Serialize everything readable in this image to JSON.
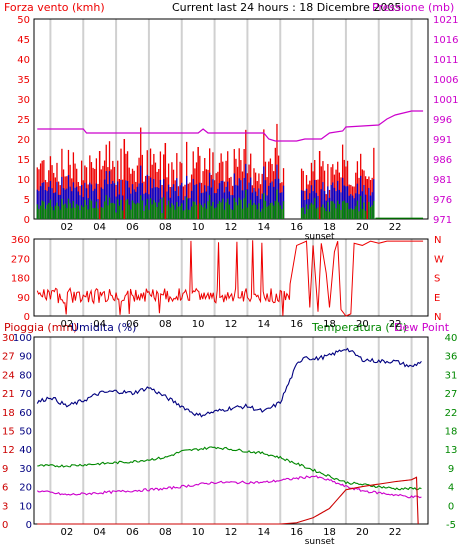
{
  "colors": {
    "red": "#ee0000",
    "blue": "#0000cc",
    "green": "#008800",
    "magenta": "#cc00cc",
    "dark_blue": "#000080",
    "dark_red": "#cc0000",
    "grid": "#d0d0d0",
    "frame": "#000000"
  },
  "chart_data": [
    {
      "type": "bar",
      "title": "Current last 24 hours : 18 Dicembre 2005",
      "left_label": "Forza vento (kmh)",
      "right_label": "Pressione (mb)",
      "left_ticks": [
        "50",
        "45",
        "40",
        "35",
        "30",
        "25",
        "20",
        "15",
        "10",
        "5",
        "0"
      ],
      "right_ticks": [
        "1021",
        "1016",
        "1011",
        "1006",
        "1001",
        "996",
        "991",
        "986",
        "981",
        "976",
        "971"
      ],
      "x_ticks": [
        "02",
        "04",
        "06",
        "08",
        "10",
        "12",
        "14",
        "16",
        "18",
        "20",
        "22"
      ],
      "annotation": "sunset",
      "ylim": [
        0,
        50
      ],
      "y2lim": [
        971,
        1021
      ],
      "x": {
        "start": 0.0,
        "end": 23.7
      },
      "series": [
        {
          "name": "gust",
          "color": "#ee0000",
          "kind": "bar"
        },
        {
          "name": "wind",
          "color": "#0000cc",
          "kind": "bar"
        },
        {
          "name": "min",
          "color": "#008800",
          "kind": "bar"
        },
        {
          "name": "pressure",
          "color": "#cc00cc",
          "kind": "line",
          "points": [
            [
              0.2,
              993.5
            ],
            [
              3.0,
              993.5
            ],
            [
              3.2,
              992.5
            ],
            [
              10.0,
              992.5
            ],
            [
              10.3,
              993.5
            ],
            [
              10.6,
              992.5
            ],
            [
              14.0,
              992.5
            ],
            [
              14.3,
              991.0
            ],
            [
              14.7,
              990.5
            ],
            [
              16.0,
              990.5
            ],
            [
              16.5,
              991.0
            ],
            [
              17.5,
              991.0
            ],
            [
              18.0,
              992.5
            ],
            [
              18.8,
              993.0
            ],
            [
              19.0,
              994.0
            ],
            [
              21.0,
              994.5
            ],
            [
              21.5,
              996.0
            ],
            [
              22.0,
              997.0
            ],
            [
              23.0,
              998.0
            ],
            [
              23.7,
              998.0
            ]
          ]
        }
      ]
    },
    {
      "type": "line",
      "right_labels": [
        "N",
        "W",
        "S",
        "E",
        "N"
      ],
      "left_ticks": [
        "360",
        "270",
        "180",
        "90",
        "0"
      ],
      "x_ticks": [
        "02",
        "04",
        "06",
        "08",
        "10",
        "12",
        "14",
        "16",
        "18",
        "20",
        "22"
      ],
      "ylim": [
        0,
        360
      ],
      "series": [
        {
          "name": "direction",
          "color": "#ee0000"
        }
      ]
    },
    {
      "type": "line",
      "left_label_1": "Pioggia (mm)",
      "left_label_2": "Umidita (%)",
      "right_label_1": "Temperatura (°C)",
      "right_label_2": "Dew Point",
      "rain_ticks": [
        "30",
        "27",
        "24",
        "21",
        "18",
        "15",
        "12",
        "9",
        "6",
        "3",
        "0"
      ],
      "hum_ticks": [
        "100",
        "90",
        "80",
        "70",
        "60",
        "50",
        "40",
        "30",
        "20",
        "10",
        "0"
      ],
      "temp_ticks": [
        "40",
        "36",
        "31",
        "27",
        "22",
        "18",
        "13",
        "9",
        "4",
        "0",
        "-5"
      ],
      "x_ticks": [
        "02",
        "04",
        "06",
        "08",
        "10",
        "12",
        "14",
        "16",
        "18",
        "20",
        "22"
      ],
      "annotation": "sunset",
      "humidity_lim": [
        0,
        100
      ],
      "temp_lim": [
        -5,
        40
      ],
      "series": [
        {
          "name": "humidity",
          "color": "#000080",
          "points": [
            [
              0.2,
              65
            ],
            [
              1.0,
              68
            ],
            [
              2.0,
              63
            ],
            [
              3.0,
              66
            ],
            [
              4.0,
              70
            ],
            [
              5.0,
              71
            ],
            [
              6.0,
              70
            ],
            [
              7.0,
              73
            ],
            [
              8.0,
              68
            ],
            [
              9.0,
              63
            ],
            [
              10.0,
              58
            ],
            [
              11.0,
              60
            ],
            [
              12.0,
              62
            ],
            [
              13.0,
              63
            ],
            [
              14.0,
              60
            ],
            [
              15.0,
              65
            ],
            [
              15.5,
              75
            ],
            [
              16.0,
              85
            ],
            [
              16.5,
              90
            ],
            [
              17.0,
              88
            ],
            [
              18.0,
              90
            ],
            [
              19.0,
              94
            ],
            [
              20.0,
              88
            ],
            [
              21.0,
              87
            ],
            [
              22.0,
              87
            ],
            [
              23.0,
              84
            ],
            [
              23.6,
              87
            ]
          ]
        },
        {
          "name": "temperatura",
          "color": "#008800",
          "points": [
            [
              0.2,
              9
            ],
            [
              2.0,
              9
            ],
            [
              4.0,
              9.5
            ],
            [
              6.0,
              10
            ],
            [
              8.0,
              11
            ],
            [
              9.0,
              12.5
            ],
            [
              10.0,
              13
            ],
            [
              11.0,
              13.5
            ],
            [
              12.0,
              13
            ],
            [
              13.0,
              12.5
            ],
            [
              14.0,
              12
            ],
            [
              15.0,
              11
            ],
            [
              16.0,
              9.5
            ],
            [
              17.0,
              8
            ],
            [
              18.0,
              6.5
            ],
            [
              19.0,
              5
            ],
            [
              20.0,
              4.5
            ],
            [
              21.0,
              4
            ],
            [
              22.0,
              3.5
            ],
            [
              23.0,
              3.5
            ],
            [
              23.6,
              3.5
            ]
          ]
        },
        {
          "name": "dew_point",
          "color": "#cc00cc",
          "points": [
            [
              0.2,
              3
            ],
            [
              2.0,
              2
            ],
            [
              4.0,
              2.5
            ],
            [
              6.0,
              3
            ],
            [
              8.0,
              3.5
            ],
            [
              9.0,
              4
            ],
            [
              10.0,
              4.5
            ],
            [
              11.0,
              5
            ],
            [
              12.0,
              5
            ],
            [
              13.0,
              5
            ],
            [
              14.0,
              5
            ],
            [
              15.0,
              5.5
            ],
            [
              16.0,
              6
            ],
            [
              17.0,
              6.5
            ],
            [
              18.0,
              5.5
            ],
            [
              19.0,
              4
            ],
            [
              20.0,
              3
            ],
            [
              21.0,
              2.5
            ],
            [
              22.0,
              2
            ],
            [
              23.0,
              1.5
            ],
            [
              23.6,
              1.5
            ]
          ]
        },
        {
          "name": "pioggia",
          "color": "#cc0000",
          "points": [
            [
              0.2,
              0
            ],
            [
              15.0,
              0
            ],
            [
              16.0,
              0.2
            ],
            [
              17.0,
              1.0
            ],
            [
              18.0,
              2.5
            ],
            [
              18.5,
              4.0
            ],
            [
              19.0,
              5.5
            ],
            [
              20.0,
              6.0
            ],
            [
              21.0,
              6.4
            ],
            [
              22.0,
              6.8
            ],
            [
              23.0,
              7.1
            ],
            [
              23.3,
              7.5
            ],
            [
              23.4,
              0
            ]
          ]
        }
      ]
    }
  ]
}
